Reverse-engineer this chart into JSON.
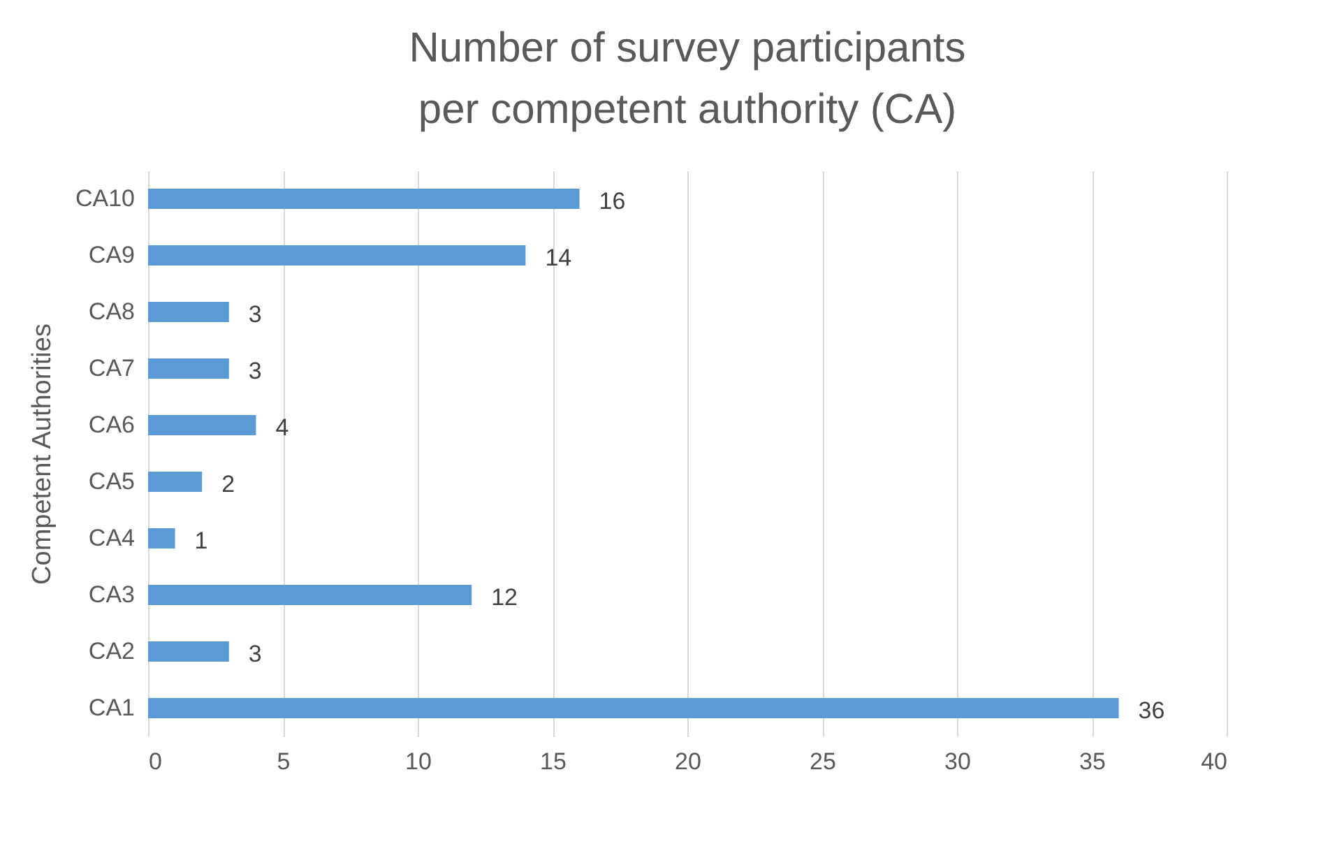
{
  "chart_data": {
    "type": "bar",
    "orientation": "horizontal",
    "title": "Number of survey participants per competent authority (CA)",
    "ylabel": "Competent Authorities",
    "categories": [
      "CA10",
      "CA9",
      "CA8",
      "CA7",
      "CA6",
      "CA5",
      "CA4",
      "CA3",
      "CA2",
      "CA1"
    ],
    "values": [
      16,
      14,
      3,
      3,
      4,
      2,
      1,
      12,
      3,
      36
    ],
    "color": "#5b9bd5",
    "xlim": [
      0,
      40
    ],
    "xticks": [
      0,
      5,
      10,
      15,
      20,
      25,
      30,
      35,
      40
    ],
    "grid": "x",
    "data_labels": true
  }
}
